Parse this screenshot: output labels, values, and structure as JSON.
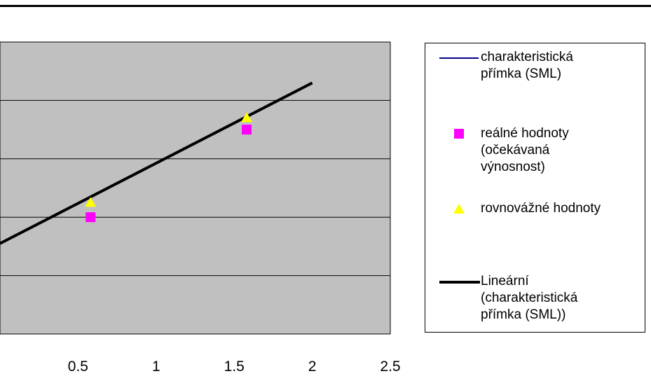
{
  "chart_data": {
    "type": "scatter",
    "title": "",
    "xlabel": "",
    "ylabel": "",
    "xlim": [
      0,
      2.5
    ],
    "x_ticks": [
      "0.5",
      "1",
      "1.5",
      "2",
      "2.5"
    ],
    "y_gridlines": 5,
    "grid": true,
    "plot_background": "#c0c0c0",
    "legend_position": "right",
    "series": [
      {
        "name": "charakteristická\npřímka (SML)",
        "kind": "line",
        "color": "#000080",
        "points": []
      },
      {
        "name": "reálné hodnoty\n(očekávaná\nvýnosnost)",
        "kind": "marker-square",
        "color": "#ff00ff",
        "points": [
          {
            "x": 0.58,
            "y": 0.2
          },
          {
            "x": 1.58,
            "y": 0.35
          }
        ]
      },
      {
        "name": "rovnovážné hodnoty",
        "kind": "marker-triangle",
        "color": "#ffff00",
        "points": [
          {
            "x": 0.58,
            "y": 0.225
          },
          {
            "x": 1.58,
            "y": 0.37
          }
        ]
      },
      {
        "name": "Lineární\n(charakteristická\npřímka (SML))",
        "kind": "trendline",
        "color": "#000000",
        "points": [
          {
            "x": 0,
            "y": 0.155
          },
          {
            "x": 2,
            "y": 0.43
          }
        ]
      }
    ]
  }
}
